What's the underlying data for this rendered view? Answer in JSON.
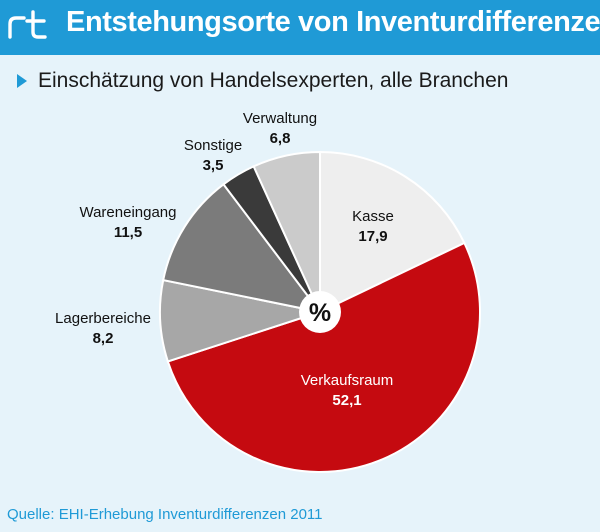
{
  "header": {
    "logo_text": "rt",
    "title": "Entstehungsorte von Inventurdifferenzen"
  },
  "subtitle": "Einschätzung von Handelsexperten, alle Branchen",
  "source": "Quelle: EHI-Erhebung Inventurdifferenzen 2011",
  "colors": {
    "accent": "#1f9ad6",
    "background": "#e6f3fa"
  },
  "chart_data": {
    "type": "pie",
    "center_label": "%",
    "slices": [
      {
        "name": "Kasse",
        "value": 17.9,
        "label": "17,9",
        "color": "#eeeeee"
      },
      {
        "name": "Verkaufsraum",
        "value": 52.1,
        "label": "52,1",
        "color": "#c50a10"
      },
      {
        "name": "Lagerbereiche",
        "value": 8.2,
        "label": "8,2",
        "color": "#a7a7a7"
      },
      {
        "name": "Wareneingang",
        "value": 11.5,
        "label": "11,5",
        "color": "#7b7b7b"
      },
      {
        "name": "Sonstige",
        "value": 3.5,
        "label": "3,5",
        "color": "#3a3a3a"
      },
      {
        "name": "Verwaltung",
        "value": 6.8,
        "label": "6,8",
        "color": "#cbcbcb"
      }
    ]
  }
}
